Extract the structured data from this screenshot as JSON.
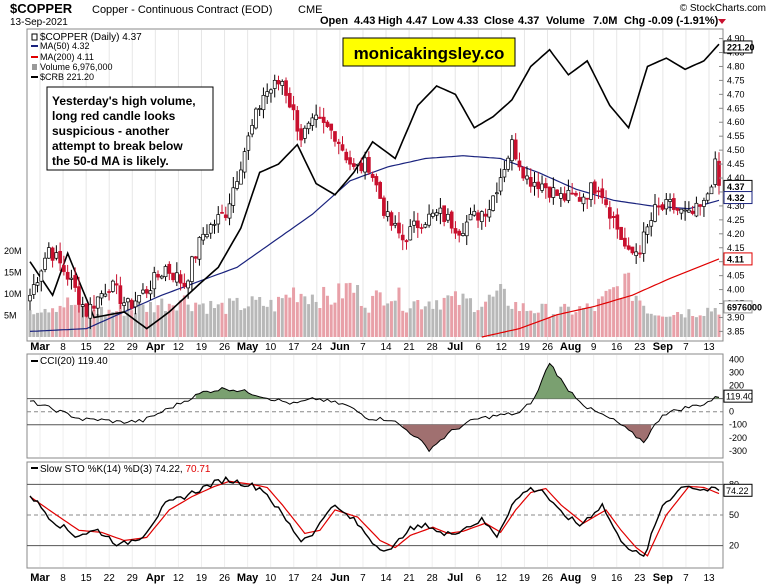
{
  "header": {
    "symbol": "$COPPER",
    "description": "Copper - Continuous Contract (EOD)",
    "exchange": "CME",
    "date": "13-Sep-2021",
    "source": "© StockCharts.com",
    "open_label": "Open",
    "open": "4.43",
    "high_label": "High",
    "high": "4.47",
    "low_label": "Low",
    "low": "4.33",
    "close_label": "Close",
    "close": "4.37",
    "volume_label": "Volume",
    "volume": "7.0M",
    "chg_label": "Chg",
    "chg": "-0.09 (-1.91%)"
  },
  "watermark": "monicakingsley.co",
  "annotation": [
    "Yesterday's high volume,",
    "long red candle looks",
    "suspicious - another",
    "attempt to break below",
    "the 50-d MA is likely."
  ],
  "legend": {
    "main": "$COPPER (Daily) 4.37",
    "ma50": "MA(50) 4.32",
    "ma200": "MA(200) 4.11",
    "volume": "Volume 6,976,000",
    "crb": "$CRB 221.20"
  },
  "price_axis": {
    "ticks": [
      "4.90",
      "4.85",
      "4.80",
      "4.75",
      "4.70",
      "4.65",
      "4.60",
      "4.55",
      "4.50",
      "4.45",
      "4.40",
      "4.35",
      "4.30",
      "4.25",
      "4.20",
      "4.15",
      "4.10",
      "4.05",
      "4.00",
      "3.95",
      "3.90",
      "3.85"
    ],
    "tags": {
      "crb": "221.20",
      "close": "4.37",
      "ma50": "4.32",
      "ma200": "4.11",
      "volume": "6976000"
    }
  },
  "volume_axis": {
    "ticks": [
      "20M",
      "15M",
      "10M",
      "5M"
    ]
  },
  "x_axis": {
    "labels": [
      "Mar",
      "8",
      "15",
      "22",
      "29",
      "Apr",
      "12",
      "19",
      "26",
      "May",
      "10",
      "17",
      "24",
      "Jun",
      "7",
      "14",
      "21",
      "28",
      "Jul",
      "6",
      "12",
      "19",
      "26",
      "Aug",
      "9",
      "16",
      "23",
      "Sep",
      "7",
      "13"
    ]
  },
  "cci": {
    "legend": "CCI(20) 119.40",
    "tag": "119.40",
    "ticks": [
      "400",
      "300",
      "200",
      "100",
      "0",
      "-100",
      "-200",
      "-300"
    ]
  },
  "sto": {
    "legend_prefix": "Slow STO %K(14) %D(3)",
    "k": "74.22",
    "d": "70.71",
    "tag": "74.22",
    "ticks": [
      "80",
      "50",
      "20"
    ]
  },
  "colors": {
    "up": "#ffffff",
    "down": "#c8102e",
    "ma50": "#1a237e",
    "ma200": "#e00000",
    "crb": "#000000",
    "volume_up": "#b8b8b8",
    "volume_down": "#e8a0a8",
    "cci_fill": "#7aa070",
    "cci_neg": "#a07070",
    "sto_d": "#e00000",
    "watermark_bg": "#ffff00"
  },
  "chart_data": {
    "type": "candlestick",
    "title": "$COPPER Copper - Continuous Contract (EOD) CME",
    "date_range": [
      "2021-02-26",
      "2021-09-13"
    ],
    "ylim": [
      3.83,
      4.92
    ],
    "price_anchors": [
      [
        0,
        3.98
      ],
      [
        5,
        4.15
      ],
      [
        10,
        4.05
      ],
      [
        15,
        3.92
      ],
      [
        21,
        4.02
      ],
      [
        26,
        3.94
      ],
      [
        31,
        4.0
      ],
      [
        36,
        4.08
      ],
      [
        41,
        4.02
      ],
      [
        46,
        4.2
      ],
      [
        52,
        4.28
      ],
      [
        57,
        4.5
      ],
      [
        62,
        4.7
      ],
      [
        67,
        4.75
      ],
      [
        72,
        4.55
      ],
      [
        76,
        4.6
      ],
      [
        81,
        4.56
      ],
      [
        86,
        4.43
      ],
      [
        90,
        4.45
      ],
      [
        95,
        4.25
      ],
      [
        99,
        4.18
      ],
      [
        104,
        4.25
      ],
      [
        109,
        4.27
      ],
      [
        114,
        4.22
      ],
      [
        118,
        4.26
      ],
      [
        122,
        4.3
      ],
      [
        128,
        4.52
      ],
      [
        132,
        4.4
      ],
      [
        136,
        4.38
      ],
      [
        141,
        4.33
      ],
      [
        146,
        4.33
      ],
      [
        151,
        4.38
      ],
      [
        156,
        4.22
      ],
      [
        159,
        4.12
      ],
      [
        162,
        4.15
      ],
      [
        166,
        4.28
      ],
      [
        170,
        4.3
      ],
      [
        175,
        4.26
      ],
      [
        179,
        4.3
      ],
      [
        182,
        4.44
      ],
      [
        183,
        4.37
      ]
    ],
    "ma50_anchors": [
      [
        0,
        3.85
      ],
      [
        15,
        3.86
      ],
      [
        35,
        3.98
      ],
      [
        55,
        4.08
      ],
      [
        75,
        4.27
      ],
      [
        85,
        4.39
      ],
      [
        95,
        4.44
      ],
      [
        105,
        4.47
      ],
      [
        115,
        4.48
      ],
      [
        125,
        4.47
      ],
      [
        135,
        4.42
      ],
      [
        145,
        4.36
      ],
      [
        155,
        4.32
      ],
      [
        165,
        4.3
      ],
      [
        175,
        4.29
      ],
      [
        183,
        4.32
      ]
    ],
    "ma200_anchors": [
      [
        120,
        3.83
      ],
      [
        130,
        3.86
      ],
      [
        140,
        3.91
      ],
      [
        150,
        3.94
      ],
      [
        160,
        3.98
      ],
      [
        170,
        4.04
      ],
      [
        183,
        4.11
      ]
    ],
    "crb_anchors": [
      [
        0,
        4.1
      ],
      [
        6,
        3.98
      ],
      [
        10,
        4.13
      ],
      [
        17,
        3.9
      ],
      [
        25,
        3.92
      ],
      [
        31,
        3.86
      ],
      [
        37,
        3.92
      ],
      [
        45,
        4.02
      ],
      [
        50,
        4.08
      ],
      [
        56,
        4.22
      ],
      [
        61,
        4.42
      ],
      [
        66,
        4.45
      ],
      [
        71,
        4.52
      ],
      [
        76,
        4.38
      ],
      [
        81,
        4.34
      ],
      [
        86,
        4.42
      ],
      [
        91,
        4.53
      ],
      [
        97,
        4.47
      ],
      [
        103,
        4.66
      ],
      [
        108,
        4.73
      ],
      [
        113,
        4.7
      ],
      [
        118,
        4.58
      ],
      [
        123,
        4.62
      ],
      [
        128,
        4.68
      ],
      [
        133,
        4.8
      ],
      [
        138,
        4.86
      ],
      [
        143,
        4.77
      ],
      [
        148,
        4.82
      ],
      [
        154,
        4.66
      ],
      [
        159,
        4.58
      ],
      [
        164,
        4.8
      ],
      [
        169,
        4.83
      ],
      [
        174,
        4.79
      ],
      [
        179,
        4.82
      ],
      [
        183,
        4.88
      ]
    ],
    "volume_anchors": [
      [
        0,
        7
      ],
      [
        10,
        8
      ],
      [
        20,
        6
      ],
      [
        30,
        7
      ],
      [
        40,
        9
      ],
      [
        50,
        7
      ],
      [
        60,
        8
      ],
      [
        65,
        7.5
      ],
      [
        70,
        11
      ],
      [
        75,
        10
      ],
      [
        80,
        9
      ],
      [
        85,
        12
      ],
      [
        90,
        8
      ],
      [
        95,
        11
      ],
      [
        100,
        8
      ],
      [
        110,
        9
      ],
      [
        120,
        8
      ],
      [
        125,
        10
      ],
      [
        130,
        7
      ],
      [
        140,
        6
      ],
      [
        150,
        7
      ],
      [
        158,
        13
      ],
      [
        165,
        6
      ],
      [
        175,
        6
      ],
      [
        183,
        7
      ]
    ],
    "cci_anchors": [
      [
        0,
        80
      ],
      [
        8,
        0
      ],
      [
        14,
        -60
      ],
      [
        18,
        -60
      ],
      [
        24,
        -80
      ],
      [
        30,
        -70
      ],
      [
        38,
        40
      ],
      [
        46,
        150
      ],
      [
        52,
        180
      ],
      [
        58,
        150
      ],
      [
        64,
        100
      ],
      [
        70,
        60
      ],
      [
        76,
        100
      ],
      [
        84,
        50
      ],
      [
        90,
        -50
      ],
      [
        96,
        -60
      ],
      [
        102,
        -180
      ],
      [
        106,
        -290
      ],
      [
        112,
        -150
      ],
      [
        118,
        -60
      ],
      [
        124,
        -30
      ],
      [
        130,
        -10
      ],
      [
        134,
        100
      ],
      [
        138,
        380
      ],
      [
        142,
        200
      ],
      [
        148,
        30
      ],
      [
        156,
        -80
      ],
      [
        160,
        -170
      ],
      [
        163,
        -230
      ],
      [
        168,
        -20
      ],
      [
        174,
        30
      ],
      [
        179,
        60
      ],
      [
        183,
        119
      ]
    ],
    "sto_k_anchors": [
      [
        0,
        70
      ],
      [
        6,
        45
      ],
      [
        12,
        30
      ],
      [
        18,
        35
      ],
      [
        24,
        20
      ],
      [
        30,
        30
      ],
      [
        36,
        60
      ],
      [
        42,
        70
      ],
      [
        48,
        80
      ],
      [
        52,
        85
      ],
      [
        58,
        80
      ],
      [
        62,
        75
      ],
      [
        66,
        55
      ],
      [
        72,
        25
      ],
      [
        76,
        35
      ],
      [
        80,
        60
      ],
      [
        86,
        45
      ],
      [
        92,
        20
      ],
      [
        96,
        15
      ],
      [
        100,
        35
      ],
      [
        106,
        40
      ],
      [
        110,
        30
      ],
      [
        114,
        35
      ],
      [
        120,
        45
      ],
      [
        124,
        30
      ],
      [
        128,
        60
      ],
      [
        132,
        75
      ],
      [
        136,
        75
      ],
      [
        140,
        55
      ],
      [
        146,
        40
      ],
      [
        152,
        60
      ],
      [
        156,
        30
      ],
      [
        160,
        15
      ],
      [
        163,
        8
      ],
      [
        168,
        60
      ],
      [
        174,
        80
      ],
      [
        178,
        75
      ],
      [
        183,
        74
      ]
    ],
    "sto_d_anchors": [
      [
        0,
        68
      ],
      [
        7,
        50
      ],
      [
        13,
        35
      ],
      [
        19,
        33
      ],
      [
        25,
        25
      ],
      [
        31,
        28
      ],
      [
        37,
        55
      ],
      [
        43,
        68
      ],
      [
        49,
        78
      ],
      [
        53,
        83
      ],
      [
        59,
        80
      ],
      [
        63,
        77
      ],
      [
        67,
        60
      ],
      [
        73,
        32
      ],
      [
        77,
        35
      ],
      [
        81,
        55
      ],
      [
        87,
        48
      ],
      [
        93,
        25
      ],
      [
        97,
        18
      ],
      [
        101,
        30
      ],
      [
        107,
        38
      ],
      [
        111,
        32
      ],
      [
        115,
        34
      ],
      [
        121,
        42
      ],
      [
        125,
        33
      ],
      [
        129,
        55
      ],
      [
        133,
        72
      ],
      [
        137,
        76
      ],
      [
        141,
        60
      ],
      [
        147,
        42
      ],
      [
        153,
        55
      ],
      [
        157,
        35
      ],
      [
        161,
        18
      ],
      [
        164,
        10
      ],
      [
        169,
        50
      ],
      [
        175,
        78
      ],
      [
        179,
        77
      ],
      [
        183,
        71
      ]
    ]
  }
}
